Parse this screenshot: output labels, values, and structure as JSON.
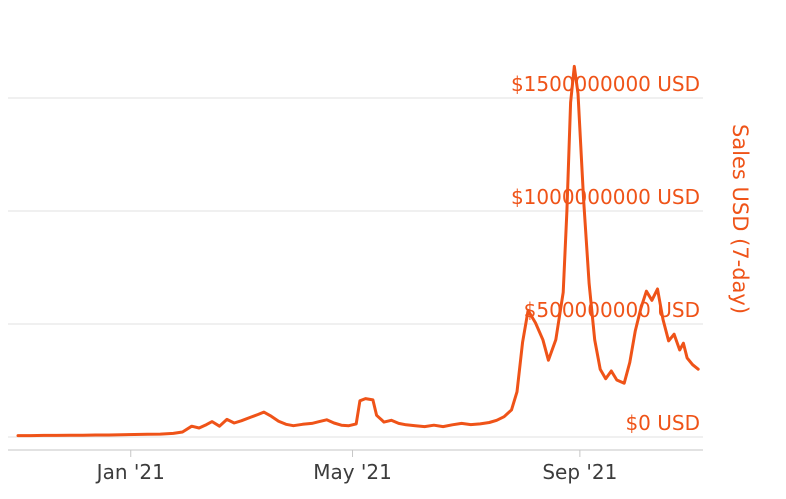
{
  "chart_data": {
    "type": "line",
    "title": "",
    "xlabel": "",
    "ylabel": "Sales USD (7-day)",
    "legend": "none",
    "grid": "horizontal",
    "value_unit": "USD millions",
    "x_domain": [
      "2020-11-01",
      "2021-11-05"
    ],
    "ylim_usd_m": [
      0,
      1700
    ],
    "x_ticks": [
      {
        "date": "2021-01-01",
        "label": "Jan '21"
      },
      {
        "date": "2021-05-01",
        "label": "May '21"
      },
      {
        "date": "2021-09-01",
        "label": "Sep '21"
      }
    ],
    "y_ticks": [
      {
        "value_usd_m": 0,
        "label": "$0 USD"
      },
      {
        "value_usd_m": 500,
        "label": "$500000000 USD"
      },
      {
        "value_usd_m": 1000,
        "label": "$1000000000 USD"
      },
      {
        "value_usd_m": 1500,
        "label": "$1500000000 USD"
      }
    ],
    "series": [
      {
        "name": "Sales USD (7-day)",
        "color": "#ef5318",
        "points_usd_millions": [
          [
            "2020-11-01",
            6
          ],
          [
            "2020-11-08",
            6
          ],
          [
            "2020-11-15",
            7
          ],
          [
            "2020-11-22",
            7
          ],
          [
            "2020-11-29",
            8
          ],
          [
            "2020-12-06",
            8
          ],
          [
            "2020-12-13",
            9
          ],
          [
            "2020-12-20",
            9
          ],
          [
            "2020-12-27",
            10
          ],
          [
            "2021-01-03",
            11
          ],
          [
            "2021-01-10",
            12
          ],
          [
            "2021-01-17",
            13
          ],
          [
            "2021-01-24",
            16
          ],
          [
            "2021-01-29",
            22
          ],
          [
            "2021-02-03",
            48
          ],
          [
            "2021-02-07",
            40
          ],
          [
            "2021-02-11",
            55
          ],
          [
            "2021-02-14",
            68
          ],
          [
            "2021-02-18",
            48
          ],
          [
            "2021-02-22",
            78
          ],
          [
            "2021-02-26",
            62
          ],
          [
            "2021-03-02",
            72
          ],
          [
            "2021-03-07",
            88
          ],
          [
            "2021-03-11",
            100
          ],
          [
            "2021-03-14",
            110
          ],
          [
            "2021-03-18",
            92
          ],
          [
            "2021-03-22",
            70
          ],
          [
            "2021-03-26",
            56
          ],
          [
            "2021-03-30",
            50
          ],
          [
            "2021-04-04",
            56
          ],
          [
            "2021-04-09",
            60
          ],
          [
            "2021-04-13",
            68
          ],
          [
            "2021-04-17",
            76
          ],
          [
            "2021-04-21",
            62
          ],
          [
            "2021-04-25",
            52
          ],
          [
            "2021-04-29",
            50
          ],
          [
            "2021-05-03",
            58
          ],
          [
            "2021-05-05",
            160
          ],
          [
            "2021-05-08",
            170
          ],
          [
            "2021-05-12",
            164
          ],
          [
            "2021-05-14",
            96
          ],
          [
            "2021-05-18",
            66
          ],
          [
            "2021-05-22",
            74
          ],
          [
            "2021-05-26",
            60
          ],
          [
            "2021-05-30",
            54
          ],
          [
            "2021-06-04",
            50
          ],
          [
            "2021-06-09",
            46
          ],
          [
            "2021-06-14",
            52
          ],
          [
            "2021-06-19",
            46
          ],
          [
            "2021-06-24",
            54
          ],
          [
            "2021-06-29",
            60
          ],
          [
            "2021-07-04",
            55
          ],
          [
            "2021-07-09",
            58
          ],
          [
            "2021-07-14",
            64
          ],
          [
            "2021-07-18",
            74
          ],
          [
            "2021-07-22",
            90
          ],
          [
            "2021-07-26",
            120
          ],
          [
            "2021-07-29",
            200
          ],
          [
            "2021-08-01",
            420
          ],
          [
            "2021-08-04",
            560
          ],
          [
            "2021-08-08",
            505
          ],
          [
            "2021-08-12",
            430
          ],
          [
            "2021-08-15",
            340
          ],
          [
            "2021-08-19",
            430
          ],
          [
            "2021-08-23",
            640
          ],
          [
            "2021-08-25",
            1000
          ],
          [
            "2021-08-27",
            1480
          ],
          [
            "2021-08-29",
            1640
          ],
          [
            "2021-08-31",
            1520
          ],
          [
            "2021-09-03",
            1050
          ],
          [
            "2021-09-06",
            680
          ],
          [
            "2021-09-09",
            430
          ],
          [
            "2021-09-12",
            300
          ],
          [
            "2021-09-15",
            258
          ],
          [
            "2021-09-18",
            292
          ],
          [
            "2021-09-21",
            252
          ],
          [
            "2021-09-25",
            238
          ],
          [
            "2021-09-28",
            330
          ],
          [
            "2021-10-01",
            470
          ],
          [
            "2021-10-04",
            570
          ],
          [
            "2021-10-07",
            645
          ],
          [
            "2021-10-10",
            605
          ],
          [
            "2021-10-13",
            655
          ],
          [
            "2021-10-16",
            520
          ],
          [
            "2021-10-19",
            425
          ],
          [
            "2021-10-22",
            455
          ],
          [
            "2021-10-25",
            385
          ],
          [
            "2021-10-27",
            415
          ],
          [
            "2021-10-29",
            350
          ],
          [
            "2021-11-01",
            320
          ],
          [
            "2021-11-04",
            300
          ]
        ]
      }
    ]
  },
  "colors": {
    "accent_orange": "#ef5318",
    "axis_text": "#3c3c3c",
    "gridline": "#e2e2e2",
    "axis_line": "#c6c6c6",
    "background": "#ffffff"
  }
}
